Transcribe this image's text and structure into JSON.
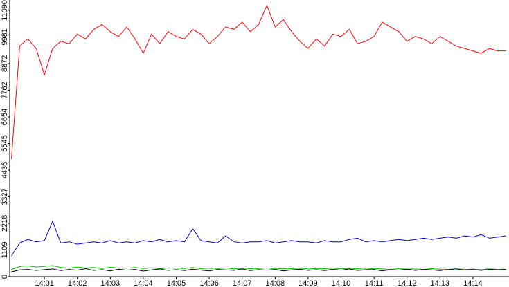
{
  "chart_data": {
    "type": "line",
    "categories": [
      null,
      null,
      null,
      null,
      "14:01",
      null,
      null,
      null,
      "14:02",
      null,
      null,
      null,
      "14:03",
      null,
      null,
      null,
      "14:04",
      null,
      null,
      null,
      "14:05",
      null,
      null,
      null,
      "14:06",
      null,
      null,
      null,
      "14:07",
      null,
      null,
      null,
      "14:08",
      null,
      null,
      null,
      "14:09",
      null,
      null,
      null,
      "14:10",
      null,
      null,
      null,
      "14:11",
      null,
      null,
      null,
      "14:12",
      null,
      null,
      null,
      "14:13",
      null,
      null,
      null,
      "14:14",
      null,
      null,
      null,
      null
    ],
    "series": [
      {
        "color": "#ff0000",
        "values": [
          4900,
          9600,
          9900,
          9500,
          8400,
          9500,
          9800,
          9700,
          10100,
          9900,
          10300,
          10500,
          10200,
          10000,
          10400,
          9900,
          9300,
          10100,
          9700,
          10200,
          10000,
          9900,
          10300,
          10100,
          9700,
          10000,
          10400,
          10300,
          10600,
          10200,
          10500,
          11300,
          10400,
          10700,
          10200,
          9800,
          9500,
          9900,
          9600,
          10100,
          10000,
          10300,
          9700,
          9800,
          10000,
          10600,
          10400,
          10200,
          9800,
          10000,
          9900,
          9700,
          10000,
          9800,
          9600,
          9500,
          9400,
          9300,
          9500,
          9400,
          9400
        ]
      },
      {
        "color": "#0000c0",
        "values": [
          860,
          1400,
          1550,
          1450,
          1500,
          2300,
          1400,
          1450,
          1350,
          1400,
          1450,
          1400,
          1500,
          1400,
          1450,
          1400,
          1500,
          1450,
          1550,
          1450,
          1500,
          1450,
          2000,
          1500,
          1450,
          1400,
          1700,
          1450,
          1400,
          1450,
          1450,
          1500,
          1400,
          1450,
          1500,
          1450,
          1450,
          1400,
          1500,
          1450,
          1450,
          1550,
          1600,
          1450,
          1500,
          1450,
          1500,
          1550,
          1500,
          1550,
          1600,
          1550,
          1600,
          1650,
          1600,
          1700,
          1650,
          1750,
          1600,
          1650,
          1700
        ]
      },
      {
        "color": "#00c000",
        "values": [
          300,
          420,
          450,
          400,
          430,
          460,
          380,
          350,
          400,
          360,
          380,
          340,
          390,
          360,
          350,
          380,
          340,
          370,
          330,
          360,
          350,
          340,
          380,
          330,
          350,
          340,
          360,
          320,
          350,
          330,
          340,
          360,
          320,
          340,
          330,
          350,
          320,
          340,
          330,
          310,
          340,
          320,
          330,
          310,
          340,
          320,
          300,
          330,
          310,
          320,
          300,
          330,
          310,
          300,
          320,
          300,
          310,
          290,
          320,
          300,
          310
        ]
      },
      {
        "color": "#000000",
        "values": [
          200,
          280,
          300,
          260,
          290,
          320,
          250,
          300,
          270,
          330,
          260,
          290,
          240,
          310,
          270,
          300,
          230,
          280,
          320,
          260,
          290,
          250,
          310,
          270,
          240,
          300,
          280,
          260,
          320,
          250,
          290,
          270,
          300,
          240,
          280,
          310,
          260,
          290,
          250,
          300,
          270,
          320,
          260,
          280,
          300,
          240,
          290,
          270,
          310,
          260,
          300,
          280,
          250,
          290,
          320,
          270,
          300,
          260,
          310,
          280,
          300
        ]
      }
    ],
    "ylim": [
      0,
      11520
    ],
    "yticks": [
      0,
      1109,
      2218,
      3327,
      4436,
      5545,
      6654,
      7762,
      8872,
      9981,
      11090
    ]
  }
}
